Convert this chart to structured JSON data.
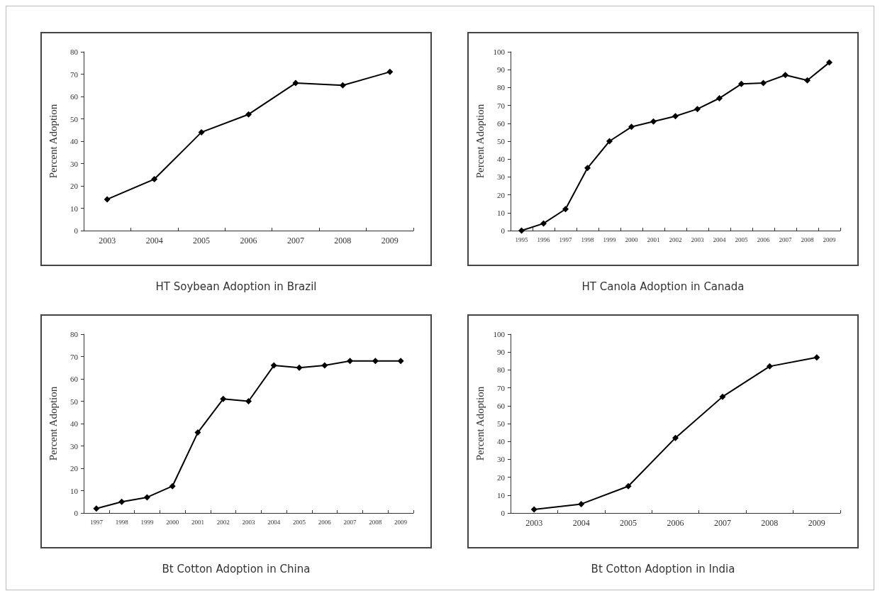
{
  "chart_data": [
    {
      "type": "line",
      "title": "HT Soybean Adoption in Brazil",
      "ylabel": "Percent Adoption",
      "categories": [
        "2003",
        "2004",
        "2005",
        "2006",
        "2007",
        "2008",
        "2009"
      ],
      "series": [
        {
          "color": "#000000",
          "values": [
            14,
            23,
            44,
            52,
            66,
            65,
            71
          ]
        }
      ],
      "ylim": [
        0,
        80
      ],
      "yticks": [
        0,
        10,
        20,
        30,
        40,
        50,
        60,
        70,
        80
      ],
      "grid": false,
      "marker": "diamond",
      "line_style": "solid"
    },
    {
      "type": "line",
      "title": "HT Canola Adoption in Canada",
      "ylabel": "Percent Adoption",
      "categories": [
        "1995",
        "1996",
        "1997",
        "1998",
        "1999",
        "2000",
        "2001",
        "2002",
        "2003",
        "2004",
        "2005",
        "2006",
        "2007",
        "2008",
        "2009"
      ],
      "series": [
        {
          "color": "#000000",
          "values": [
            0,
            4,
            12,
            35,
            50,
            58,
            61,
            64,
            68,
            74,
            82,
            82.5,
            87,
            84,
            94
          ]
        }
      ],
      "ylim": [
        0,
        100
      ],
      "yticks": [
        0,
        10,
        20,
        30,
        40,
        50,
        60,
        70,
        80,
        90,
        100
      ],
      "grid": false,
      "marker": "diamond",
      "line_style": "solid"
    },
    {
      "type": "line",
      "title": "Bt Cotton Adoption in China",
      "ylabel": "Percent Adoption",
      "categories": [
        "1997",
        "1998",
        "1999",
        "2000",
        "2001",
        "2002",
        "2003",
        "2004",
        "2005",
        "2006",
        "2007",
        "2008",
        "2009"
      ],
      "series": [
        {
          "color": "#000000",
          "values": [
            2,
            5,
            7,
            12,
            36,
            51,
            50,
            66,
            65,
            66,
            68,
            68,
            68
          ]
        }
      ],
      "ylim": [
        0,
        80
      ],
      "yticks": [
        0,
        10,
        20,
        30,
        40,
        50,
        60,
        70,
        80
      ],
      "grid": false,
      "marker": "diamond",
      "line_style": "solid"
    },
    {
      "type": "line",
      "title": "Bt Cotton Adoption in India",
      "ylabel": "Percent Adoption",
      "categories": [
        "2003",
        "2004",
        "2005",
        "2006",
        "2007",
        "2008",
        "2009"
      ],
      "series": [
        {
          "color": "#000000",
          "values": [
            2,
            5,
            15,
            42,
            65,
            82,
            87
          ]
        }
      ],
      "ylim": [
        0,
        100
      ],
      "yticks": [
        0,
        10,
        20,
        30,
        40,
        50,
        60,
        70,
        80,
        90,
        100
      ],
      "grid": false,
      "marker": "diamond",
      "line_style": "solid"
    }
  ]
}
